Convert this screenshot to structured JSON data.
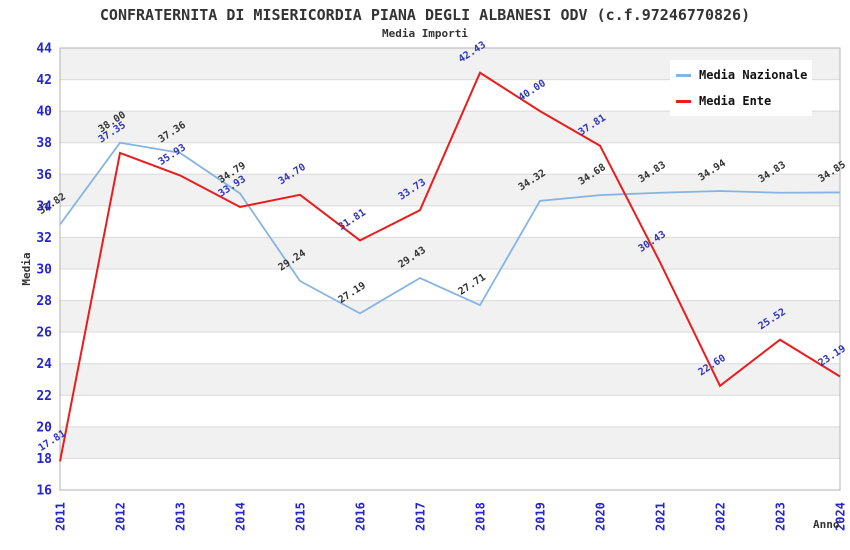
{
  "page": {
    "background": "#ffffff"
  },
  "chart_data": {
    "type": "line",
    "title": "CONFRATERNITA DI MISERICORDIA PIANA DEGLI ALBANESI ODV (c.f.97246770826)",
    "subtitle": "Media Importi",
    "xlabel": "Anno",
    "ylabel": "Media",
    "categories": [
      "2011",
      "2012",
      "2013",
      "2014",
      "2015",
      "2016",
      "2017",
      "2018",
      "2019",
      "2020",
      "2021",
      "2022",
      "2023",
      "2024"
    ],
    "series": [
      {
        "name": "Media Nazionale",
        "color": "#85b4e4",
        "label_color": "#333333",
        "values": [
          32.82,
          38.0,
          37.36,
          34.79,
          29.24,
          27.19,
          29.43,
          27.71,
          34.32,
          34.68,
          34.83,
          34.94,
          34.83,
          34.85
        ]
      },
      {
        "name": "Media Ente",
        "color": "#ea1c1c",
        "label_color": "#2e35b8",
        "values": [
          17.81,
          37.35,
          35.93,
          33.93,
          34.7,
          31.81,
          33.73,
          42.43,
          40.0,
          37.81,
          30.43,
          22.6,
          25.52,
          23.19
        ]
      }
    ],
    "ylim": [
      16,
      44
    ],
    "ytick_step": 2,
    "value_decimals": 2,
    "grid": true,
    "band_fill": "#f1f1f1",
    "grid_color": "#dadada",
    "border_color": "#b3b3b3",
    "tick_color": "#2525cf",
    "axis_label_color": "#333333",
    "legend_position": "top-right"
  }
}
